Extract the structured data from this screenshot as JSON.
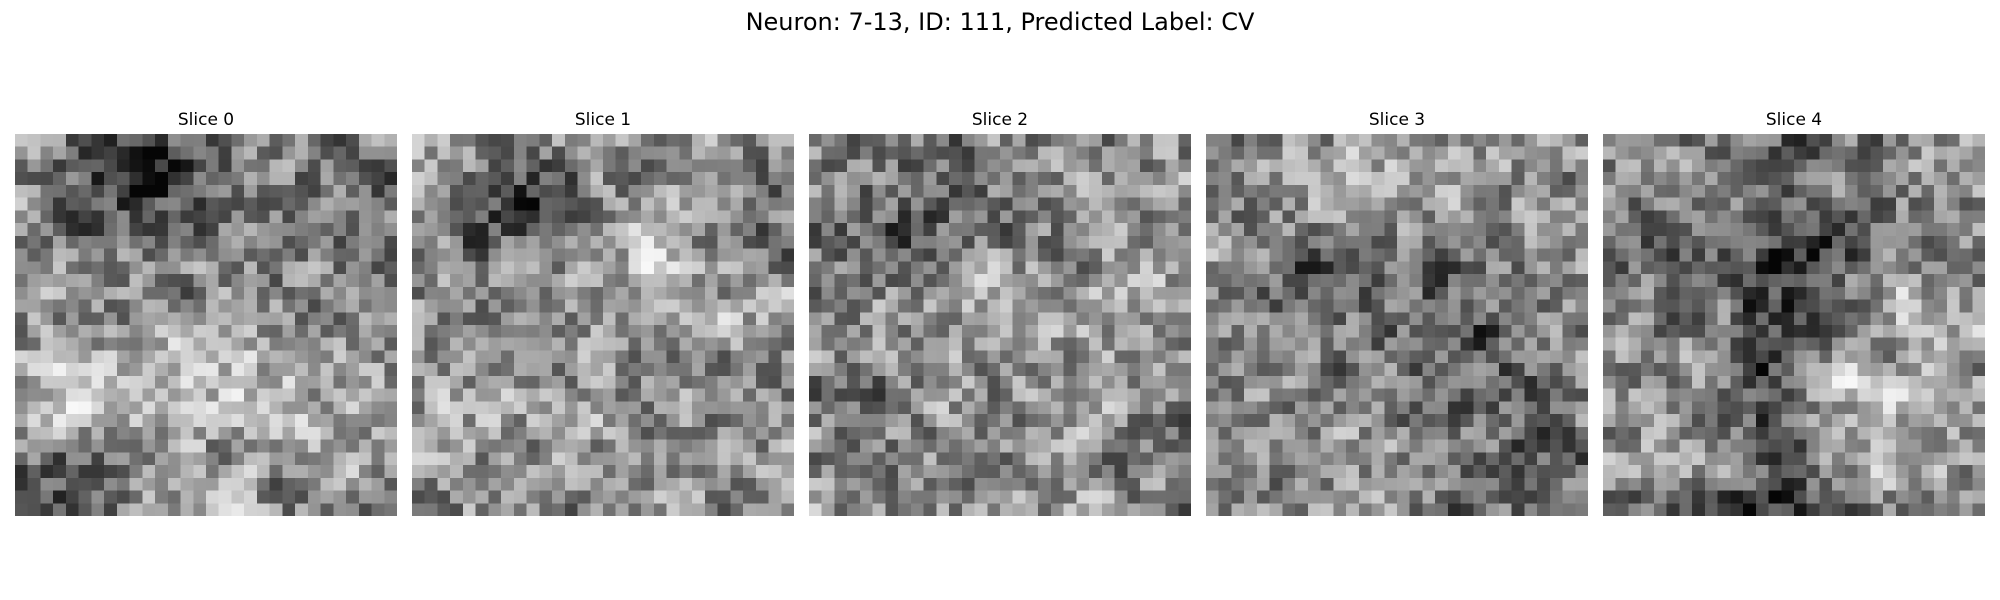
{
  "figure": {
    "title": "Neuron: 7-13, ID: 111, Predicted Label: CV"
  },
  "slices": [
    {
      "title": "Slice 0"
    },
    {
      "title": "Slice 1"
    },
    {
      "title": "Slice 2"
    },
    {
      "title": "Slice 3"
    },
    {
      "title": "Slice 4"
    }
  ],
  "colormap": "gray"
}
